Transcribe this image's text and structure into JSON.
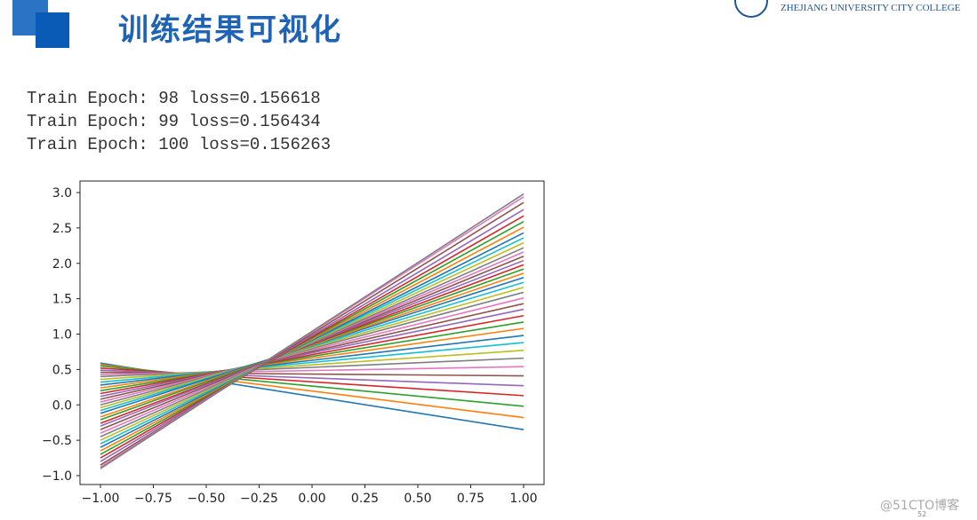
{
  "slide": {
    "title": "训练结果可视化",
    "institution": "ZHEJIANG UNIVERSITY CITY COLLEGE",
    "watermark": "@51CTO博客",
    "page_number": "52"
  },
  "console": {
    "lines": [
      "Train Epoch: 98 loss=0.156618",
      "Train Epoch: 99 loss=0.156434",
      "Train Epoch: 100 loss=0.156263"
    ]
  },
  "chart_data": {
    "type": "line",
    "title": "",
    "xlabel": "",
    "ylabel": "",
    "xlim": [
      -1.0,
      1.0
    ],
    "ylim": [
      -1.0,
      3.0
    ],
    "x_ticks": [
      -1.0,
      -0.75,
      -0.5,
      -0.25,
      0.0,
      0.25,
      0.5,
      0.75,
      1.0
    ],
    "x_tick_labels": [
      "−1.00",
      "−0.75",
      "−0.50",
      "−0.25",
      "0.00",
      "0.25",
      "0.50",
      "0.75",
      "1.00"
    ],
    "y_ticks": [
      -1.0,
      -0.5,
      0.0,
      0.5,
      1.0,
      1.5,
      2.0,
      2.5,
      3.0
    ],
    "y_tick_labels": [
      "−1.0",
      "−0.5",
      "0.0",
      "0.5",
      "1.0",
      "1.5",
      "2.0",
      "2.5",
      "3.0"
    ],
    "grid": false,
    "x": [
      -1.0,
      1.0
    ],
    "series": [
      {
        "values": [
          0.59,
          -0.35
        ]
      },
      {
        "values": [
          0.57,
          -0.18
        ]
      },
      {
        "values": [
          0.55,
          -0.02
        ]
      },
      {
        "values": [
          0.52,
          0.13
        ]
      },
      {
        "values": [
          0.49,
          0.27
        ]
      },
      {
        "values": [
          0.46,
          0.41
        ]
      },
      {
        "values": [
          0.43,
          0.54
        ]
      },
      {
        "values": [
          0.4,
          0.66
        ]
      },
      {
        "values": [
          0.36,
          0.77
        ]
      },
      {
        "values": [
          0.32,
          0.88
        ]
      },
      {
        "values": [
          0.28,
          0.98
        ]
      },
      {
        "values": [
          0.24,
          1.08
        ]
      },
      {
        "values": [
          0.2,
          1.17
        ]
      },
      {
        "values": [
          0.16,
          1.26
        ]
      },
      {
        "values": [
          0.12,
          1.35
        ]
      },
      {
        "values": [
          0.08,
          1.43
        ]
      },
      {
        "values": [
          0.04,
          1.51
        ]
      },
      {
        "values": [
          0.0,
          1.59
        ]
      },
      {
        "values": [
          -0.04,
          1.66
        ]
      },
      {
        "values": [
          -0.08,
          1.73
        ]
      },
      {
        "values": [
          -0.12,
          1.8
        ]
      },
      {
        "values": [
          -0.17,
          1.86
        ]
      },
      {
        "values": [
          -0.21,
          1.92
        ]
      },
      {
        "values": [
          -0.26,
          1.98
        ]
      },
      {
        "values": [
          -0.3,
          2.04
        ]
      },
      {
        "values": [
          -0.35,
          2.1
        ]
      },
      {
        "values": [
          -0.4,
          2.16
        ]
      },
      {
        "values": [
          -0.45,
          2.22
        ]
      },
      {
        "values": [
          -0.5,
          2.29
        ]
      },
      {
        "values": [
          -0.55,
          2.36
        ]
      },
      {
        "values": [
          -0.6,
          2.43
        ]
      },
      {
        "values": [
          -0.65,
          2.51
        ]
      },
      {
        "values": [
          -0.7,
          2.59
        ]
      },
      {
        "values": [
          -0.75,
          2.67
        ]
      },
      {
        "values": [
          -0.8,
          2.76
        ]
      },
      {
        "values": [
          -0.85,
          2.86
        ]
      },
      {
        "values": [
          -0.88,
          2.94
        ]
      },
      {
        "values": [
          -0.9,
          2.98
        ]
      }
    ],
    "colors": [
      "#1f77b4",
      "#ff7f0e",
      "#2ca02c",
      "#d62728",
      "#9467bd",
      "#8c564b",
      "#e377c2",
      "#7f7f7f",
      "#bcbd22",
      "#17becf"
    ]
  }
}
